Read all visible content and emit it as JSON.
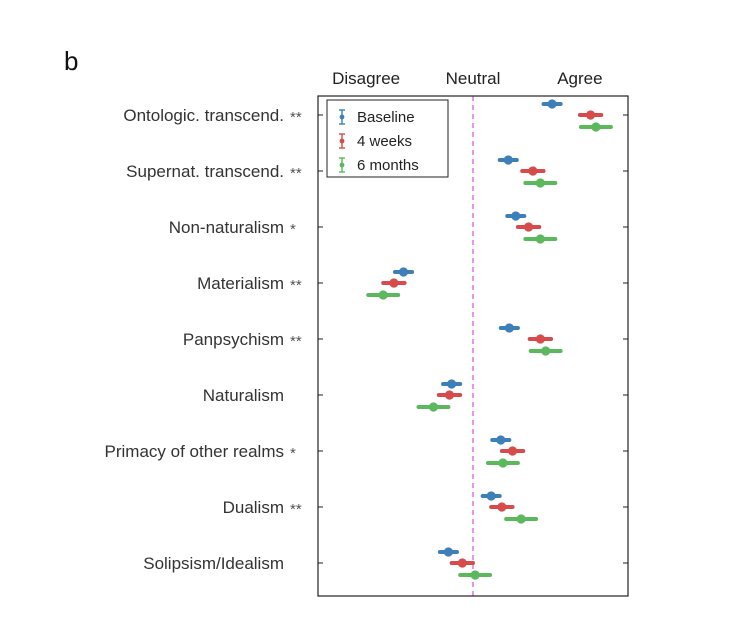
{
  "panel_label": "b",
  "chart_data": {
    "type": "dot-errorbar",
    "x_tick_labels": [
      "Disagree",
      "Neutral",
      "Agree"
    ],
    "x_tick_positions": [
      -1,
      0,
      1
    ],
    "xlim": [
      -1.45,
      1.45
    ],
    "reference_line": 0,
    "categories": [
      "Ontologic. transcend.",
      "Supernat. transcend.",
      "Non-naturalism",
      "Materialism",
      "Panpsychism",
      "Naturalism",
      "Primacy of other realms",
      "Dualism",
      "Solipsism/Idealism"
    ],
    "significance": [
      "**",
      "**",
      "*",
      "**",
      "**",
      "",
      "*",
      "**",
      ""
    ],
    "series": [
      {
        "name": "Baseline",
        "color": "#3d7fb8",
        "means": [
          0.74,
          0.33,
          0.4,
          -0.65,
          0.34,
          -0.2,
          0.26,
          0.17,
          -0.23
        ],
        "errors": [
          0.08,
          0.08,
          0.08,
          0.08,
          0.08,
          0.08,
          0.08,
          0.08,
          0.08
        ]
      },
      {
        "name": "4 weeks",
        "color": "#d84b4b",
        "means": [
          1.1,
          0.56,
          0.52,
          -0.74,
          0.63,
          -0.22,
          0.37,
          0.27,
          -0.1
        ],
        "errors": [
          0.1,
          0.1,
          0.1,
          0.1,
          0.1,
          0.1,
          0.1,
          0.1,
          0.1
        ]
      },
      {
        "name": "6 months",
        "color": "#5cb85c",
        "means": [
          1.15,
          0.63,
          0.63,
          -0.84,
          0.68,
          -0.37,
          0.28,
          0.45,
          0.02
        ],
        "errors": [
          0.14,
          0.14,
          0.14,
          0.14,
          0.14,
          0.14,
          0.14,
          0.14,
          0.14
        ]
      }
    ],
    "legend_position": "top-left"
  }
}
